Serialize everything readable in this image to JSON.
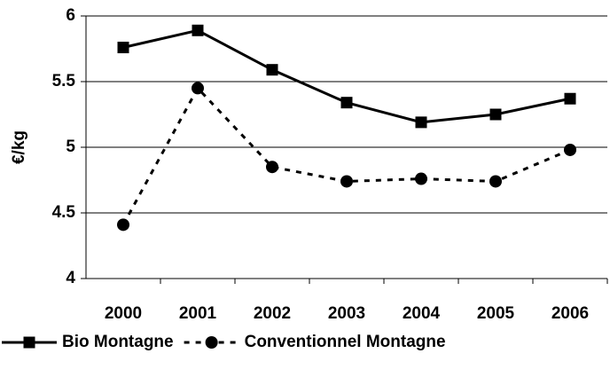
{
  "chart_data": {
    "type": "line",
    "y_label": "€/kg",
    "categories": [
      "2000",
      "2001",
      "2002",
      "2003",
      "2004",
      "2005",
      "2006"
    ],
    "series": [
      {
        "name": "Bio Montagne",
        "color": "#000000",
        "dash": "solid",
        "marker": "square",
        "values": [
          5.76,
          5.89,
          5.59,
          5.34,
          5.19,
          5.25,
          5.37
        ]
      },
      {
        "name": "Conventionnel Montagne",
        "color": "#000000",
        "dash": "dashed",
        "marker": "circle",
        "values": [
          4.41,
          5.45,
          4.85,
          4.74,
          4.76,
          4.74,
          4.98
        ]
      }
    ],
    "ylim": [
      4,
      6
    ],
    "yticks": [
      4,
      4.5,
      5,
      5.5,
      6
    ],
    "grid": true,
    "legend": "bottom"
  }
}
